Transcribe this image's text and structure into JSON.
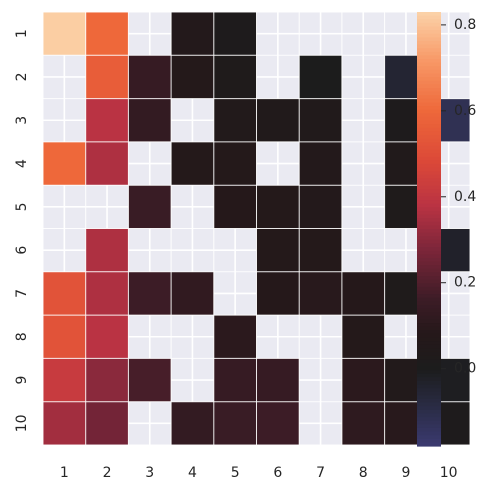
{
  "chart_data": {
    "type": "heatmap",
    "title": "",
    "xlabel": "",
    "ylabel": "",
    "x_labels": [
      "1",
      "2",
      "3",
      "4",
      "5",
      "6",
      "7",
      "8",
      "9",
      "10"
    ],
    "y_labels": [
      "1",
      "2",
      "3",
      "4",
      "5",
      "6",
      "7",
      "8",
      "9",
      "10"
    ],
    "values": [
      [
        0.82,
        0.6,
        null,
        0.06,
        0.02,
        null,
        null,
        null,
        null,
        null
      ],
      [
        null,
        0.56,
        0.14,
        0.07,
        0.03,
        null,
        0.0,
        null,
        -0.05,
        null
      ],
      [
        null,
        0.38,
        0.13,
        null,
        0.05,
        0.04,
        0.04,
        null,
        0.02,
        -0.12
      ],
      [
        0.6,
        0.36,
        null,
        0.07,
        0.07,
        null,
        0.06,
        null,
        0.04,
        null
      ],
      [
        null,
        null,
        0.15,
        null,
        0.08,
        0.07,
        0.06,
        null,
        0.03,
        null
      ],
      [
        null,
        0.36,
        null,
        null,
        null,
        0.07,
        0.07,
        null,
        null,
        -0.03
      ],
      [
        0.52,
        0.36,
        0.16,
        0.12,
        null,
        0.08,
        0.09,
        0.08,
        0.03,
        null
      ],
      [
        0.52,
        0.38,
        null,
        null,
        0.1,
        null,
        null,
        0.07,
        null,
        null
      ],
      [
        0.42,
        0.3,
        0.18,
        null,
        0.14,
        0.14,
        null,
        0.1,
        0.05,
        -0.01
      ],
      [
        0.34,
        0.26,
        null,
        0.13,
        0.15,
        0.16,
        null,
        0.11,
        0.09,
        0.02
      ]
    ],
    "colorbar": {
      "min": -0.18,
      "max": 0.83,
      "ticks": [
        0.0,
        0.2,
        0.4,
        0.6,
        0.8
      ],
      "tick_labels": [
        "0.0",
        "0.2",
        "0.4",
        "0.6",
        "0.8"
      ]
    },
    "missing_color": "#eaeaf2",
    "grid": true,
    "colormap": "icefire-like diverging (center 0)"
  }
}
